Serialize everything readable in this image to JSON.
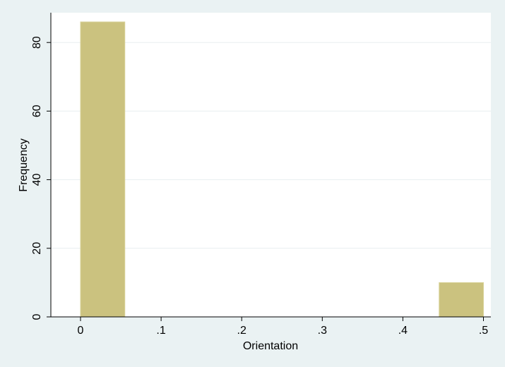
{
  "chart_data": {
    "type": "bar",
    "subtype": "histogram",
    "title": "",
    "xlabel": "Orientation",
    "ylabel": "Frequency",
    "xlim": [
      -0.04,
      0.51
    ],
    "ylim": [
      0,
      86
    ],
    "x_ticks": [
      0,
      0.1,
      0.2,
      0.3,
      0.4,
      0.5
    ],
    "x_tick_labels": [
      "0",
      ".1",
      ".2",
      ".3",
      ".4",
      ".5"
    ],
    "y_ticks": [
      0,
      20,
      40,
      60,
      80
    ],
    "y_tick_labels": [
      "0",
      "20",
      "40",
      "60",
      "80"
    ],
    "bins": [
      {
        "x_start": 0.0,
        "x_end": 0.055,
        "value": 86
      },
      {
        "x_start": 0.445,
        "x_end": 0.5,
        "value": 10
      }
    ],
    "grid": true,
    "legend": "none",
    "colors": {
      "bar_fill": "#cbc27f",
      "bar_stroke": "#d9d39a",
      "plot_bg": "#ffffff",
      "outer_bg": "#eaf2f3",
      "grid": "#e8eef0",
      "axis": "#000000"
    }
  }
}
